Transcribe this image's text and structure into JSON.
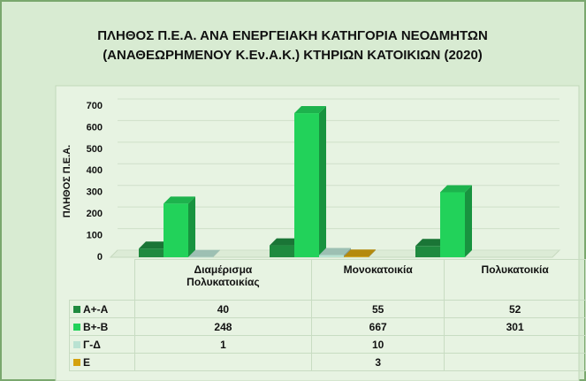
{
  "chart_data": {
    "type": "bar3d",
    "title": [
      "ΠΛΗΘΟΣ Π.Ε.Α. ΑΝΑ ΕΝΕΡΓΕΙΑΚΗ ΚΑΤΗΓΟΡΙΑ ΝΕΟΔΜΗΤΩΝ",
      "(ΑΝΑΘΕΩΡΗΜΕΝΟΥ Κ.Εν.Α.Κ.) ΚΤΗΡΙΩΝ ΚΑΤΟΙΚΙΩΝ (2020)"
    ],
    "y_label": "ΠΛΗΘΟΣ Π.Ε.Α.",
    "categories": [
      "Διαμέρισμα Πολυκατοικίας",
      "Μονοκατοικία",
      "Πολυκατοικία"
    ],
    "series": [
      {
        "name": "Α+-Α",
        "color": "#1f8a3f",
        "values": [
          40,
          55,
          52
        ]
      },
      {
        "name": "Β+-Β",
        "color": "#22d25a",
        "values": [
          248,
          667,
          301
        ]
      },
      {
        "name": "Γ-Δ",
        "color": "#b9e2d2",
        "values": [
          1,
          10,
          null
        ]
      },
      {
        "name": "Ε",
        "color": "#d4a20f",
        "values": [
          null,
          3,
          null
        ]
      }
    ],
    "ylim": [
      0,
      700
    ],
    "yticks": [
      0,
      100,
      200,
      300,
      400,
      500,
      600,
      700
    ],
    "grid": true,
    "data_table": true
  }
}
